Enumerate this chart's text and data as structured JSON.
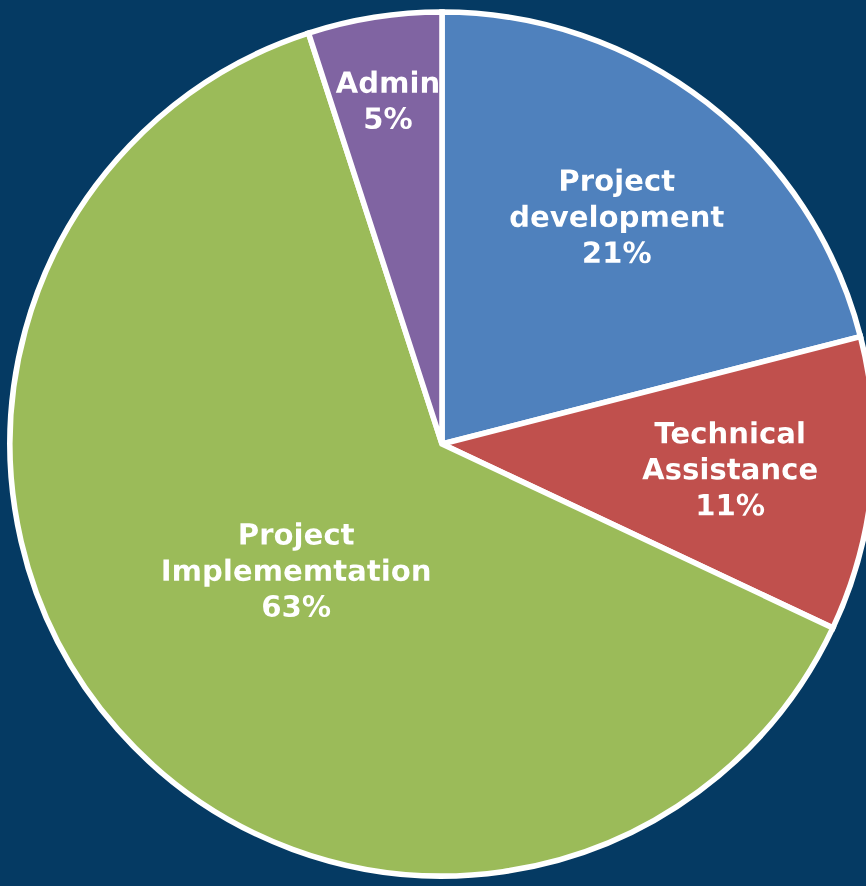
{
  "chart_data": {
    "type": "pie",
    "categories": [
      "Project development",
      "Technical Assistance",
      "Project Implememtation",
      "Admin"
    ],
    "values": [
      21,
      11,
      63,
      5
    ],
    "colors": [
      "#4f81bd",
      "#c0504d",
      "#9bbb59",
      "#8064a2"
    ],
    "value_labels": [
      "21%",
      "11%",
      "63%",
      "5%"
    ],
    "legend": false
  }
}
